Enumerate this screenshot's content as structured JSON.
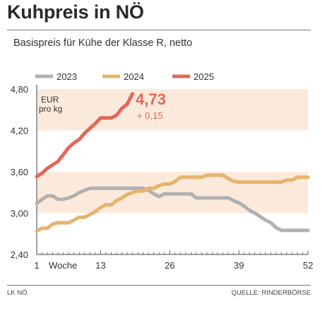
{
  "chart_data": {
    "type": "line",
    "title": "Kuhpreis in NÖ",
    "subtitle": "Basispreis für Kühe der Klasse R, netto",
    "unit_label_line1": "EUR",
    "unit_label_line2": "pro kg",
    "xlabel": "Woche",
    "xlim": [
      1,
      52
    ],
    "x_ticks": [
      1,
      13,
      26,
      39,
      52
    ],
    "ylim": [
      2.4,
      4.8
    ],
    "y_ticks": [
      2.4,
      3.0,
      3.6,
      4.2,
      4.8
    ],
    "y_tick_labels": [
      "2,40",
      "3,00",
      "3,60",
      "4,20",
      "4,80"
    ],
    "bands": [
      [
        3.0,
        3.6
      ],
      [
        4.2,
        4.8
      ]
    ],
    "legend_position": "top-left",
    "series": [
      {
        "name": "2023",
        "color": "#b1b1b1",
        "x": [
          1,
          2,
          3,
          4,
          5,
          6,
          7,
          8,
          9,
          10,
          11,
          12,
          13,
          14,
          15,
          16,
          17,
          18,
          19,
          20,
          21,
          22,
          23,
          24,
          25,
          26,
          27,
          28,
          29,
          30,
          31,
          32,
          33,
          34,
          35,
          36,
          37,
          38,
          39,
          40,
          41,
          42,
          43,
          44,
          45,
          46,
          47,
          48,
          49,
          50,
          51,
          52
        ],
        "values": [
          3.14,
          3.2,
          3.25,
          3.25,
          3.2,
          3.2,
          3.22,
          3.25,
          3.3,
          3.33,
          3.36,
          3.36,
          3.36,
          3.36,
          3.36,
          3.36,
          3.36,
          3.36,
          3.36,
          3.36,
          3.36,
          3.33,
          3.28,
          3.24,
          3.28,
          3.28,
          3.28,
          3.28,
          3.28,
          3.28,
          3.22,
          3.22,
          3.22,
          3.22,
          3.22,
          3.22,
          3.22,
          3.18,
          3.15,
          3.1,
          3.04,
          3.0,
          2.95,
          2.9,
          2.86,
          2.79,
          2.75,
          2.75,
          2.75,
          2.75,
          2.75,
          2.75
        ]
      },
      {
        "name": "2024",
        "color": "#e5b46e",
        "x": [
          1,
          2,
          3,
          4,
          5,
          6,
          7,
          8,
          9,
          10,
          11,
          12,
          13,
          14,
          15,
          16,
          17,
          18,
          19,
          20,
          21,
          22,
          23,
          24,
          25,
          26,
          27,
          28,
          29,
          30,
          31,
          32,
          33,
          34,
          35,
          36,
          37,
          38,
          39,
          40,
          41,
          42,
          43,
          44,
          45,
          46,
          47,
          48,
          49,
          50,
          51,
          52
        ],
        "values": [
          2.74,
          2.78,
          2.78,
          2.84,
          2.86,
          2.86,
          2.86,
          2.9,
          2.94,
          2.94,
          2.98,
          3.02,
          3.08,
          3.12,
          3.12,
          3.18,
          3.22,
          3.27,
          3.3,
          3.32,
          3.32,
          3.36,
          3.36,
          3.4,
          3.42,
          3.42,
          3.46,
          3.52,
          3.52,
          3.52,
          3.52,
          3.52,
          3.55,
          3.55,
          3.55,
          3.55,
          3.5,
          3.46,
          3.45,
          3.45,
          3.45,
          3.45,
          3.45,
          3.45,
          3.45,
          3.45,
          3.45,
          3.48,
          3.48,
          3.52,
          3.52,
          3.52
        ]
      },
      {
        "name": "2025",
        "color": "#e0685a",
        "x": [
          1,
          2,
          3,
          4,
          5,
          6,
          7,
          8,
          9,
          10,
          11,
          12,
          13,
          14,
          15,
          16,
          17,
          18,
          19
        ],
        "values": [
          3.53,
          3.58,
          3.65,
          3.7,
          3.75,
          3.85,
          3.95,
          4.02,
          4.07,
          4.16,
          4.23,
          4.3,
          4.38,
          4.38,
          4.38,
          4.42,
          4.52,
          4.58,
          4.73
        ]
      }
    ],
    "annotation": {
      "value": "4,73",
      "change": "+ 0,15",
      "color": "#e0685a"
    }
  },
  "footer": {
    "left": "LK NÖ",
    "right": "QUELLE: RINDERBÖRSE"
  },
  "colors": {
    "band": "#fbeadb",
    "axis": "#444444"
  }
}
